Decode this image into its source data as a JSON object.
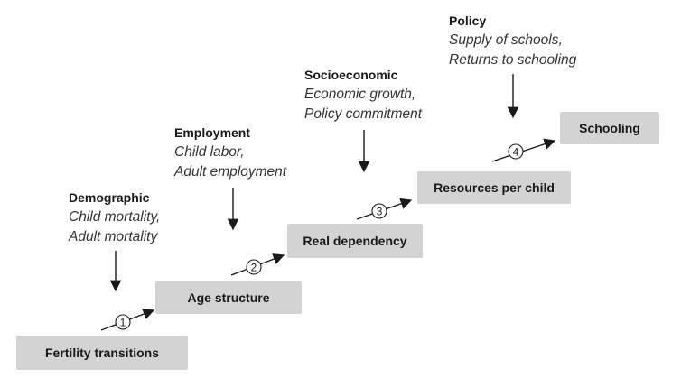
{
  "boxes": {
    "fertility": "Fertility transitions",
    "age": "Age structure",
    "dependency": "Real dependency",
    "resources": "Resources per child",
    "schooling": "Schooling"
  },
  "factors": {
    "demographic": {
      "category": "Demographic",
      "items": [
        "Child mortality,",
        "Adult mortality"
      ]
    },
    "employment": {
      "category": "Employment",
      "items": [
        "Child labor,",
        "Adult employment"
      ]
    },
    "socioeconomic": {
      "category": "Socioeconomic",
      "items": [
        "Economic growth,",
        "Policy commitment"
      ]
    },
    "policy": {
      "category": "Policy",
      "items": [
        "Supply of schools,",
        "Returns to schooling"
      ]
    }
  },
  "steps": [
    "1",
    "2",
    "3",
    "4"
  ]
}
